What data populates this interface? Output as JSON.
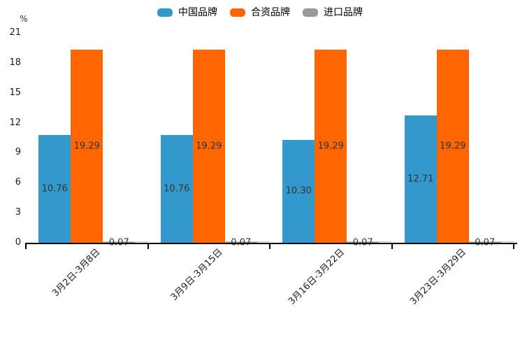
{
  "chart_data": {
    "type": "bar",
    "y_unit": "%",
    "categories": [
      "3月2日-3月8日",
      "3月9日-3月15日",
      "3月16日-3月22日",
      "3月23日-3月29日"
    ],
    "series": [
      {
        "name": "中国品牌",
        "color": "#3398CC",
        "values": [
          10.76,
          10.76,
          10.3,
          12.71
        ]
      },
      {
        "name": "合资品牌",
        "color": "#FF6600",
        "values": [
          19.29,
          19.29,
          19.29,
          19.29
        ]
      },
      {
        "name": "进口品牌",
        "color": "#999999",
        "values": [
          0.07,
          0.07,
          0.07,
          0.07
        ]
      }
    ],
    "value_labels": [
      "10.76",
      "19.29",
      "0.07",
      "10.76",
      "19.29",
      "0.07",
      "10.30",
      "19.29",
      "0.07",
      "12.71",
      "19.29",
      "0.07"
    ],
    "ylim": [
      0,
      21
    ],
    "yticks": [
      0,
      3,
      6,
      9,
      12,
      15,
      18,
      21
    ],
    "grid": false,
    "legend_position": "top",
    "colors": {
      "axis": "#000000",
      "tick_text": "#1a1a1a",
      "value_label_text": "#333333",
      "background": "#ffffff"
    }
  }
}
